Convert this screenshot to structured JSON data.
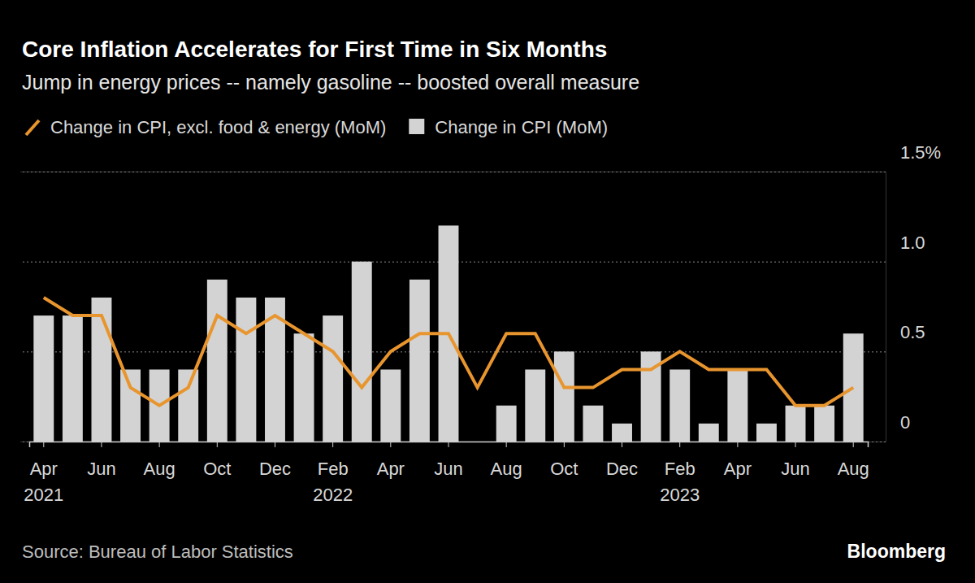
{
  "chart_data": {
    "type": "bar",
    "title": "Core Inflation Accelerates for First Time in Six Months",
    "subtitle": "Jump in energy prices -- namely gasoline -- boosted overall measure",
    "source": "Source: Bureau of Labor Statistics",
    "credit": "Bloomberg",
    "categories": [
      "Apr\n2021",
      null,
      "Jun",
      null,
      "Aug",
      null,
      "Oct",
      null,
      "Dec",
      null,
      "Feb\n2022",
      null,
      "Apr",
      null,
      "Jun",
      null,
      "Aug",
      null,
      "Oct",
      null,
      "Dec",
      null,
      "Feb\n2023",
      null,
      "Apr",
      null,
      "Jun",
      null,
      "Aug"
    ],
    "series": [
      {
        "name": "Change in CPI, excl. food & energy (MoM)",
        "type": "line",
        "color": "#e8952e",
        "values": [
          0.8,
          0.7,
          0.7,
          0.3,
          0.2,
          0.3,
          0.7,
          0.6,
          0.7,
          0.6,
          0.5,
          0.3,
          0.5,
          0.6,
          0.6,
          0.3,
          0.6,
          0.6,
          0.3,
          0.3,
          0.4,
          0.4,
          0.5,
          0.4,
          0.4,
          0.4,
          0.2,
          0.2,
          0.3
        ]
      },
      {
        "name": "Change in CPI (MoM)",
        "type": "bar",
        "color": "#d3d3d3",
        "values": [
          0.7,
          0.7,
          0.8,
          0.4,
          0.4,
          0.4,
          0.9,
          0.8,
          0.8,
          0.6,
          0.7,
          1.0,
          0.4,
          0.9,
          1.2,
          0.0,
          0.2,
          0.4,
          0.5,
          0.2,
          0.1,
          0.5,
          0.4,
          0.1,
          0.4,
          0.1,
          0.2,
          0.2,
          0.6
        ]
      }
    ],
    "ylim": [
      0,
      1.5
    ],
    "yticks": [
      0,
      0.5,
      {
        "value": 1.0,
        "label": "1.0"
      },
      {
        "value": 1.5,
        "label": "1.5%"
      }
    ],
    "grid": true,
    "legend": "top-left"
  }
}
